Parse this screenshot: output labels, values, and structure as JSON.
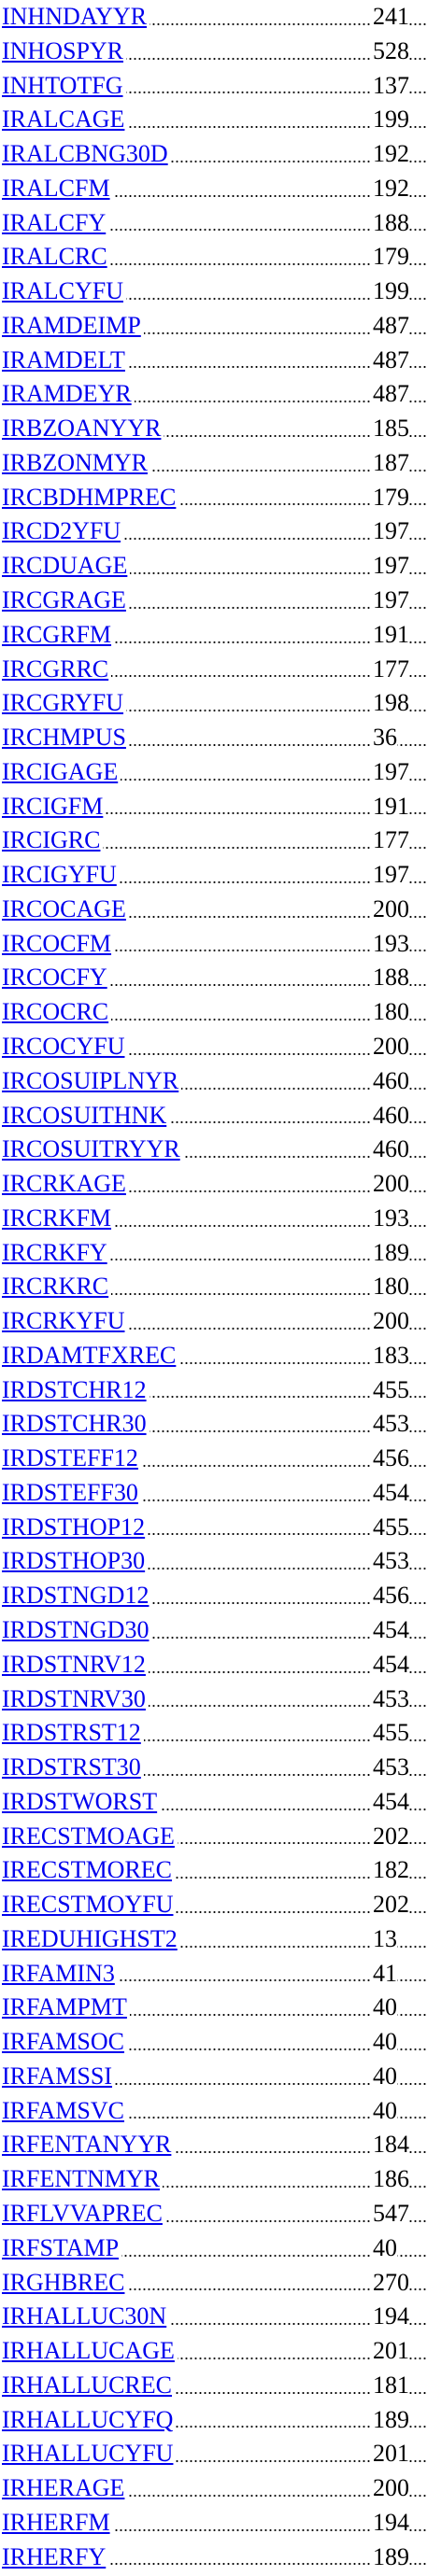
{
  "entries": [
    {
      "name": "INHNDAYYR",
      "page": "241"
    },
    {
      "name": "INHOSPYR",
      "page": "528"
    },
    {
      "name": "INHTOTFG",
      "page": "137"
    },
    {
      "name": "IRALCAGE",
      "page": "199"
    },
    {
      "name": "IRALCBNG30D",
      "page": "192"
    },
    {
      "name": "IRALCFM",
      "page": "192"
    },
    {
      "name": "IRALCFY",
      "page": "188"
    },
    {
      "name": "IRALCRC",
      "page": "179"
    },
    {
      "name": "IRALCYFU",
      "page": "199"
    },
    {
      "name": "IRAMDEIMP",
      "page": "487"
    },
    {
      "name": "IRAMDELT",
      "page": "487"
    },
    {
      "name": "IRAMDEYR",
      "page": "487"
    },
    {
      "name": "IRBZOANYYR",
      "page": "185"
    },
    {
      "name": "IRBZONMYR",
      "page": "187"
    },
    {
      "name": "IRCBDHMPREC",
      "page": "179"
    },
    {
      "name": "IRCD2YFU",
      "page": "197"
    },
    {
      "name": "IRCDUAGE",
      "page": "197"
    },
    {
      "name": "IRCGRAGE",
      "page": "197"
    },
    {
      "name": "IRCGRFM",
      "page": "191"
    },
    {
      "name": "IRCGRRC",
      "page": "177"
    },
    {
      "name": "IRCGRYFU",
      "page": "198"
    },
    {
      "name": "IRCHMPUS",
      "page": "36"
    },
    {
      "name": "IRCIGAGE",
      "page": "197"
    },
    {
      "name": "IRCIGFM",
      "page": "191"
    },
    {
      "name": "IRCIGRC",
      "page": "177"
    },
    {
      "name": "IRCIGYFU",
      "page": "197"
    },
    {
      "name": "IRCOCAGE",
      "page": "200"
    },
    {
      "name": "IRCOCFM",
      "page": "193"
    },
    {
      "name": "IRCOCFY",
      "page": "188"
    },
    {
      "name": "IRCOCRC",
      "page": "180"
    },
    {
      "name": "IRCOCYFU",
      "page": "200"
    },
    {
      "name": "IRCOSUIPLNYR",
      "page": "460"
    },
    {
      "name": "IRCOSUITHNK",
      "page": "460"
    },
    {
      "name": "IRCOSUITRYYR",
      "page": "460"
    },
    {
      "name": "IRCRKAGE",
      "page": "200"
    },
    {
      "name": "IRCRKFM",
      "page": "193"
    },
    {
      "name": "IRCRKFY",
      "page": "189"
    },
    {
      "name": "IRCRKRC",
      "page": "180"
    },
    {
      "name": "IRCRKYFU",
      "page": "200"
    },
    {
      "name": "IRDAMTFXREC",
      "page": "183"
    },
    {
      "name": "IRDSTCHR12",
      "page": "455"
    },
    {
      "name": "IRDSTCHR30",
      "page": "453"
    },
    {
      "name": "IRDSTEFF12",
      "page": "456"
    },
    {
      "name": "IRDSTEFF30",
      "page": "454"
    },
    {
      "name": "IRDSTHOP12",
      "page": "455"
    },
    {
      "name": "IRDSTHOP30",
      "page": "453"
    },
    {
      "name": "IRDSTNGD12",
      "page": "456"
    },
    {
      "name": "IRDSTNGD30",
      "page": "454"
    },
    {
      "name": "IRDSTNRV12",
      "page": "454"
    },
    {
      "name": "IRDSTNRV30",
      "page": "453"
    },
    {
      "name": "IRDSTRST12",
      "page": "455"
    },
    {
      "name": "IRDSTRST30",
      "page": "453"
    },
    {
      "name": "IRDSTWORST",
      "page": "454"
    },
    {
      "name": "IRECSTMOAGE",
      "page": "202"
    },
    {
      "name": "IRECSTMOREC",
      "page": "182"
    },
    {
      "name": "IRECSTMOYFU",
      "page": "202"
    },
    {
      "name": "IREDUHIGHST2",
      "page": "13"
    },
    {
      "name": "IRFAMIN3",
      "page": "41"
    },
    {
      "name": "IRFAMPMT",
      "page": "40"
    },
    {
      "name": "IRFAMSOC",
      "page": "40"
    },
    {
      "name": "IRFAMSSI",
      "page": "40"
    },
    {
      "name": "IRFAMSVC",
      "page": "40"
    },
    {
      "name": "IRFENTANYYR",
      "page": "184"
    },
    {
      "name": "IRFENTNMYR",
      "page": "186"
    },
    {
      "name": "IRFLVVAPREC",
      "page": "547"
    },
    {
      "name": "IRFSTAMP",
      "page": "40"
    },
    {
      "name": "IRGHBREC",
      "page": "270"
    },
    {
      "name": "IRHALLUC30N",
      "page": "194"
    },
    {
      "name": "IRHALLUCAGE",
      "page": "201"
    },
    {
      "name": "IRHALLUCREC",
      "page": "181"
    },
    {
      "name": "IRHALLUCYFQ",
      "page": "189"
    },
    {
      "name": "IRHALLUCYFU",
      "page": "201"
    },
    {
      "name": "IRHERAGE",
      "page": "200"
    },
    {
      "name": "IRHERFM",
      "page": "194"
    },
    {
      "name": "IRHERFY",
      "page": "189"
    }
  ]
}
